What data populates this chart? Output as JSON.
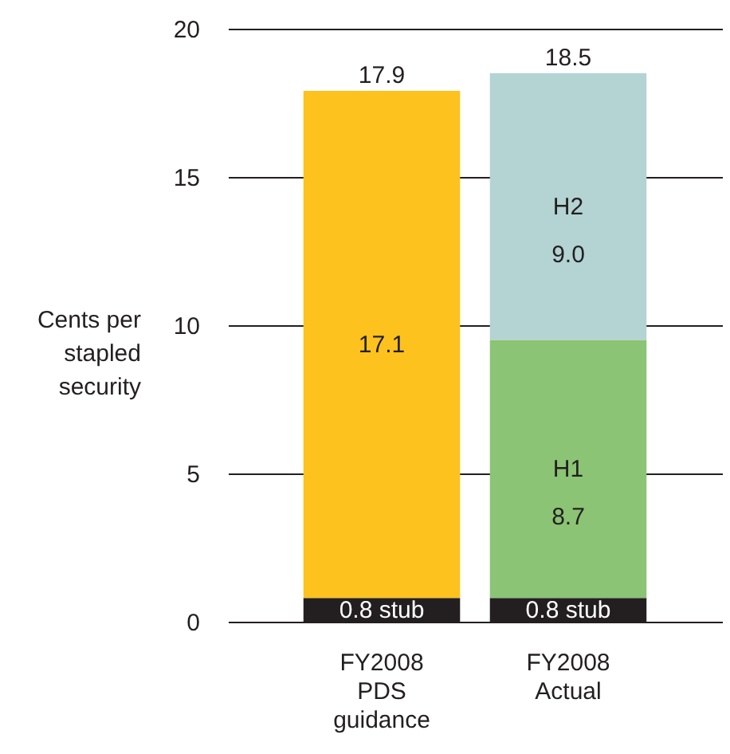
{
  "chart_data": {
    "type": "bar",
    "stacked": true,
    "ylabel": "Cents per stapled security",
    "categories": [
      "FY2008 PDS guidance",
      "FY2008 Actual"
    ],
    "series": [
      {
        "color": "#231f20",
        "values": [
          0.8,
          0.8
        ],
        "value_labels": [
          "0.8 stub",
          "0.8 stub"
        ]
      },
      {
        "color": "#fdc21e",
        "values": [
          17.1,
          null
        ],
        "value_labels": [
          "17.1",
          null
        ]
      },
      {
        "name": "H1",
        "color": "#8bc474",
        "values": [
          null,
          8.7
        ],
        "value_labels": [
          null,
          "8.7"
        ]
      },
      {
        "name": "H2",
        "color": "#b4d3d3",
        "values": [
          null,
          9.0
        ],
        "value_labels": [
          null,
          "9.0"
        ]
      }
    ],
    "totals": [
      "17.9",
      "18.5"
    ],
    "ylim": [
      0,
      20
    ],
    "yticks": [
      0,
      5,
      10,
      15,
      20
    ],
    "grid": "y"
  }
}
